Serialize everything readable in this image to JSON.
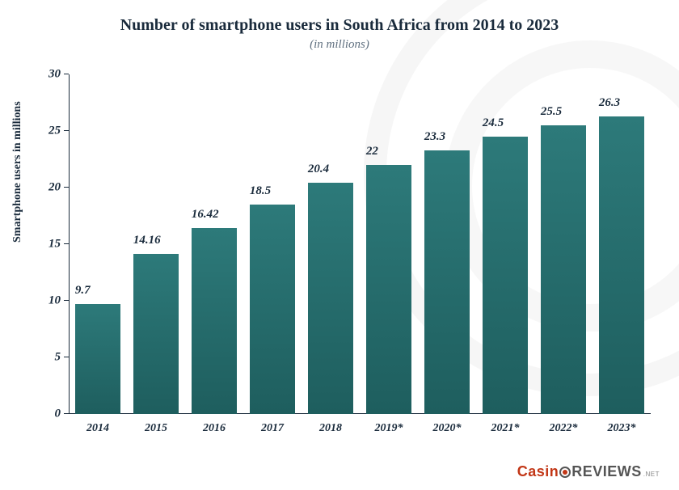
{
  "chart": {
    "type": "bar",
    "title": "Number of smartphone users in South Africa from 2014 to 2023",
    "title_fontsize": 20,
    "title_color": "#1a2b3c",
    "subtitle": "(in millions)",
    "subtitle_fontsize": 15,
    "subtitle_color": "#607080",
    "ylabel": "Smartphone users in millions",
    "ylabel_fontsize": 14,
    "ylim": [
      0,
      30
    ],
    "ytick_step": 5,
    "yticks": [
      0,
      5,
      10,
      15,
      20,
      25,
      30
    ],
    "categories": [
      "2014",
      "2015",
      "2016",
      "2017",
      "2018",
      "2019*",
      "2020*",
      "2021*",
      "2022*",
      "2023*"
    ],
    "values": [
      9.7,
      14.16,
      16.42,
      18.5,
      20.4,
      22,
      23.3,
      24.5,
      25.5,
      26.3
    ],
    "value_labels": [
      "9.7",
      "14.16",
      "16.42",
      "18.5",
      "20.4",
      "22",
      "23.3",
      "24.5",
      "25.5",
      "26.3"
    ],
    "bar_color_top": "#2d7a7a",
    "bar_color_bottom": "#1e5e5e",
    "bar_width": 0.78,
    "background_color": "#ffffff",
    "bg_ring_color": "#f0f0f0",
    "axis_color": "#1a2b3c",
    "label_color": "#1a2b3c",
    "label_fontsize": 15,
    "xlabel_fontsize": 14,
    "font_family": "Georgia, serif",
    "font_style": "italic"
  },
  "brand": {
    "text_casin": "Casin",
    "text_reviews": "REVIEWS",
    "tail": ".NET",
    "color_accent": "#c23616",
    "color_gray": "#555555"
  }
}
